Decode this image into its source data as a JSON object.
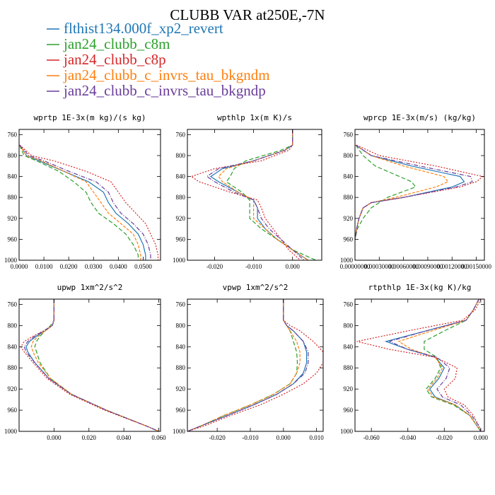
{
  "title": "CLUBB VAR at250E,-7N",
  "legend": [
    {
      "label": "flthist134.000f_xp2_revert",
      "color": "#1f77b4"
    },
    {
      "label": "jan24_clubb_c8m",
      "color": "#2ca02c"
    },
    {
      "label": "jan24_clubb_c8p",
      "color": "#d62728"
    },
    {
      "label": "jan24_clubb_c_invrs_tau_bkgndm",
      "color": "#ff7f0e"
    },
    {
      "label": "jan24_clubb_c_invrs_tau_bkgndp",
      "color": "#6a3d9a"
    }
  ],
  "chart_data": [
    {
      "type": "line",
      "title": "wprtp  1E-3x(m kg)/(s kg)",
      "xlim": [
        0,
        0.057
      ],
      "ylim": [
        750,
        1000
      ],
      "y_reversed": true,
      "x_ticks": [
        0,
        0.01,
        0.02,
        0.03,
        0.04,
        0.05
      ],
      "x_tick_labels": [
        "0.0000",
        "0.0100",
        "0.0200",
        "0.0300",
        "0.0400",
        "0.0500"
      ],
      "y_ticks": [
        760,
        800,
        840,
        880,
        920,
        960,
        1000
      ],
      "y": [
        780,
        800,
        810,
        830,
        850,
        870,
        890,
        910,
        930,
        950,
        970,
        990,
        1000
      ],
      "series": [
        {
          "values": [
            0.0002,
            0.003,
            0.008,
            0.018,
            0.028,
            0.034,
            0.036,
            0.039,
            0.044,
            0.048,
            0.05,
            0.051,
            0.051
          ]
        },
        {
          "values": [
            0.0002,
            0.002,
            0.007,
            0.016,
            0.022,
            0.027,
            0.029,
            0.032,
            0.038,
            0.043,
            0.046,
            0.048,
            0.048
          ]
        },
        {
          "values": [
            0.0003,
            0.005,
            0.014,
            0.027,
            0.037,
            0.04,
            0.043,
            0.047,
            0.051,
            0.053,
            0.055,
            0.056,
            0.056
          ]
        },
        {
          "values": [
            0.0002,
            0.003,
            0.009,
            0.018,
            0.027,
            0.03,
            0.033,
            0.036,
            0.041,
            0.046,
            0.048,
            0.049,
            0.049
          ]
        },
        {
          "values": [
            0.0002,
            0.004,
            0.01,
            0.02,
            0.031,
            0.036,
            0.038,
            0.041,
            0.046,
            0.05,
            0.052,
            0.053,
            0.053
          ]
        }
      ]
    },
    {
      "type": "line",
      "title": "wpthlp  1x(m K)/s",
      "xlim": [
        -0.027,
        0.0075
      ],
      "ylim": [
        750,
        1000
      ],
      "y_reversed": true,
      "x_ticks": [
        -0.02,
        -0.01,
        0.0
      ],
      "x_tick_labels": [
        "-0.020",
        "-0.010",
        "0.000"
      ],
      "y_ticks": [
        760,
        800,
        840,
        880,
        920,
        960,
        1000
      ],
      "y": [
        750,
        780,
        790,
        810,
        825,
        840,
        850,
        870,
        885,
        900,
        920,
        940,
        960,
        980,
        1000
      ],
      "series": [
        {
          "values": [
            0.0,
            0.0,
            -0.002,
            -0.01,
            -0.018,
            -0.021,
            -0.019,
            -0.014,
            -0.01,
            -0.009,
            -0.009,
            -0.007,
            -0.004,
            0.0,
            0.004
          ]
        },
        {
          "values": [
            0.0,
            0.0,
            -0.003,
            -0.012,
            -0.015,
            -0.016,
            -0.017,
            -0.013,
            -0.011,
            -0.011,
            -0.011,
            -0.008,
            -0.004,
            0.0,
            0.006
          ]
        },
        {
          "values": [
            0.0,
            0.0,
            -0.001,
            -0.008,
            -0.02,
            -0.026,
            -0.024,
            -0.016,
            -0.009,
            -0.008,
            -0.007,
            -0.005,
            -0.003,
            -0.001,
            0.002
          ]
        },
        {
          "values": [
            0.0,
            0.0,
            -0.002,
            -0.01,
            -0.017,
            -0.019,
            -0.018,
            -0.014,
            -0.01,
            -0.01,
            -0.01,
            -0.007,
            -0.004,
            0.0,
            0.004
          ]
        },
        {
          "values": [
            0.0,
            0.0,
            -0.002,
            -0.01,
            -0.019,
            -0.022,
            -0.02,
            -0.015,
            -0.01,
            -0.009,
            -0.008,
            -0.006,
            -0.003,
            0.0,
            0.003
          ]
        }
      ]
    },
    {
      "type": "line",
      "title": "wprcp  1E-3x(m/s) (kg/kg)",
      "xlim": [
        0,
        0.0016
      ],
      "ylim": [
        750,
        1000
      ],
      "y_reversed": true,
      "x_ticks": [
        0,
        0.0003,
        0.0006,
        0.0009,
        0.0012,
        0.0015
      ],
      "x_tick_labels": [
        "0.00000000",
        "0.00030000",
        "0.00060000",
        "0.00090000",
        "0.00120000",
        "0.00150000"
      ],
      "y_ticks": [
        760,
        800,
        840,
        880,
        920,
        960,
        1000
      ],
      "y": [
        780,
        800,
        820,
        840,
        850,
        860,
        880,
        890,
        900,
        920,
        940,
        960
      ],
      "series": [
        {
          "values": [
            1e-05,
            0.0002,
            0.0007,
            0.0013,
            0.00135,
            0.0012,
            0.0006,
            0.0002,
            0.0001,
            5e-05,
            2e-05,
            0.0
          ]
        },
        {
          "values": [
            1e-05,
            0.0001,
            0.00025,
            0.00055,
            0.0007,
            0.00075,
            0.0004,
            0.0003,
            0.0002,
            0.0001,
            3e-05,
            0.0
          ]
        },
        {
          "values": [
            2e-05,
            0.0003,
            0.001,
            0.00158,
            0.0015,
            0.0013,
            0.0006,
            0.0002,
            0.0001,
            5e-05,
            2e-05,
            0.0
          ]
        },
        {
          "values": [
            1e-05,
            0.0002,
            0.0006,
            0.0011,
            0.00115,
            0.001,
            0.0005,
            0.0002,
            0.0001,
            5e-05,
            2e-05,
            0.0
          ]
        },
        {
          "values": [
            1e-05,
            0.0002,
            0.0008,
            0.00143,
            0.00145,
            0.00125,
            0.0006,
            0.0002,
            0.0001,
            5e-05,
            2e-05,
            0.0
          ]
        }
      ]
    },
    {
      "type": "line",
      "title": "upwp  1xm^2/s^2",
      "xlim": [
        -0.02,
        0.061
      ],
      "ylim": [
        750,
        1000
      ],
      "y_reversed": true,
      "x_ticks": [
        0,
        0.02,
        0.04,
        0.06
      ],
      "x_tick_labels": [
        "0.000",
        "0.020",
        "0.040",
        "0.060"
      ],
      "y_ticks": [
        760,
        800,
        840,
        880,
        920,
        960,
        1000
      ],
      "y": [
        750,
        790,
        800,
        810,
        820,
        830,
        840,
        850,
        870,
        900,
        930,
        960,
        990,
        1000
      ],
      "series": [
        {
          "values": [
            0.0,
            0.0,
            -0.001,
            -0.005,
            -0.01,
            -0.014,
            -0.016,
            -0.015,
            -0.011,
            -0.003,
            0.01,
            0.03,
            0.053,
            0.06
          ]
        },
        {
          "values": [
            0.0,
            0.0,
            -0.002,
            -0.005,
            -0.008,
            -0.01,
            -0.011,
            -0.01,
            -0.008,
            -0.002,
            0.01,
            0.03,
            0.053,
            0.06
          ]
        },
        {
          "values": [
            0.0,
            0.0,
            -0.001,
            -0.006,
            -0.012,
            -0.017,
            -0.019,
            -0.017,
            -0.012,
            -0.004,
            0.009,
            0.029,
            0.053,
            0.06
          ]
        },
        {
          "values": [
            0.0,
            0.0,
            -0.001,
            -0.005,
            -0.009,
            -0.012,
            -0.013,
            -0.012,
            -0.009,
            -0.002,
            0.01,
            0.03,
            0.053,
            0.06
          ]
        },
        {
          "values": [
            0.0,
            0.0,
            -0.001,
            -0.006,
            -0.011,
            -0.015,
            -0.017,
            -0.016,
            -0.011,
            -0.003,
            0.01,
            0.03,
            0.053,
            0.06
          ]
        }
      ]
    },
    {
      "type": "line",
      "title": "vpwp  1xm^2/s^2",
      "xlim": [
        -0.029,
        0.012
      ],
      "ylim": [
        750,
        1000
      ],
      "y_reversed": true,
      "x_ticks": [
        -0.02,
        -0.01,
        0.0,
        0.01
      ],
      "x_tick_labels": [
        "-0.020",
        "-0.010",
        "0.000",
        "0.010"
      ],
      "y_ticks": [
        760,
        800,
        840,
        880,
        920,
        960,
        1000
      ],
      "y": [
        750,
        790,
        800,
        810,
        830,
        850,
        870,
        890,
        910,
        930,
        950,
        970,
        990,
        1000
      ],
      "series": [
        {
          "values": [
            0.0,
            0.0,
            0.001,
            0.003,
            0.006,
            0.007,
            0.007,
            0.006,
            0.003,
            -0.002,
            -0.009,
            -0.017,
            -0.025,
            -0.029
          ]
        },
        {
          "values": [
            0.0,
            0.0,
            0.001,
            0.002,
            0.003,
            0.004,
            0.0042,
            0.004,
            0.002,
            -0.003,
            -0.01,
            -0.018,
            -0.025,
            -0.029
          ]
        },
        {
          "values": [
            0.0,
            0.0,
            0.002,
            0.005,
            0.009,
            0.012,
            0.012,
            0.01,
            0.006,
            0.0,
            -0.007,
            -0.016,
            -0.024,
            -0.029
          ]
        },
        {
          "values": [
            0.0,
            0.0,
            0.001,
            0.002,
            0.004,
            0.005,
            0.005,
            0.004,
            0.002,
            -0.003,
            -0.01,
            -0.018,
            -0.025,
            -0.029
          ]
        },
        {
          "values": [
            0.0,
            0.0,
            0.001,
            0.003,
            0.006,
            0.0075,
            0.0075,
            0.0065,
            0.003,
            -0.002,
            -0.009,
            -0.017,
            -0.025,
            -0.029
          ]
        }
      ]
    },
    {
      "type": "line",
      "title": "rtpthlp  1E-3x(kg K)/kg",
      "xlim": [
        -0.069,
        0.002
      ],
      "ylim": [
        750,
        1000
      ],
      "y_reversed": true,
      "x_ticks": [
        -0.06,
        -0.04,
        -0.02,
        0.0
      ],
      "x_tick_labels": [
        "-0.060",
        "-0.040",
        "-0.020",
        "0.000"
      ],
      "y_ticks": [
        760,
        800,
        840,
        880,
        920,
        960,
        1000
      ],
      "y": [
        750,
        770,
        790,
        810,
        830,
        845,
        860,
        880,
        900,
        920,
        935,
        950,
        970,
        990,
        1000
      ],
      "series": [
        {
          "values": [
            -0.001,
            -0.004,
            -0.008,
            -0.03,
            -0.052,
            -0.04,
            -0.025,
            -0.02,
            -0.023,
            -0.028,
            -0.025,
            -0.014,
            -0.006,
            -0.002,
            0.0
          ]
        },
        {
          "values": [
            -0.001,
            -0.004,
            -0.008,
            -0.02,
            -0.031,
            -0.031,
            -0.024,
            -0.022,
            -0.025,
            -0.03,
            -0.027,
            -0.015,
            -0.006,
            -0.002,
            0.0
          ]
        },
        {
          "values": [
            0.0,
            -0.003,
            -0.01,
            -0.04,
            -0.068,
            -0.05,
            -0.025,
            -0.013,
            -0.014,
            -0.02,
            -0.018,
            -0.009,
            -0.004,
            -0.001,
            0.0
          ]
        },
        {
          "values": [
            -0.001,
            -0.004,
            -0.008,
            -0.027,
            -0.045,
            -0.038,
            -0.025,
            -0.021,
            -0.024,
            -0.029,
            -0.026,
            -0.014,
            -0.006,
            -0.002,
            0.0
          ]
        },
        {
          "values": [
            -0.001,
            -0.004,
            -0.008,
            -0.03,
            -0.05,
            -0.04,
            -0.024,
            -0.017,
            -0.019,
            -0.024,
            -0.021,
            -0.011,
            -0.005,
            -0.001,
            0.0
          ]
        }
      ]
    }
  ]
}
